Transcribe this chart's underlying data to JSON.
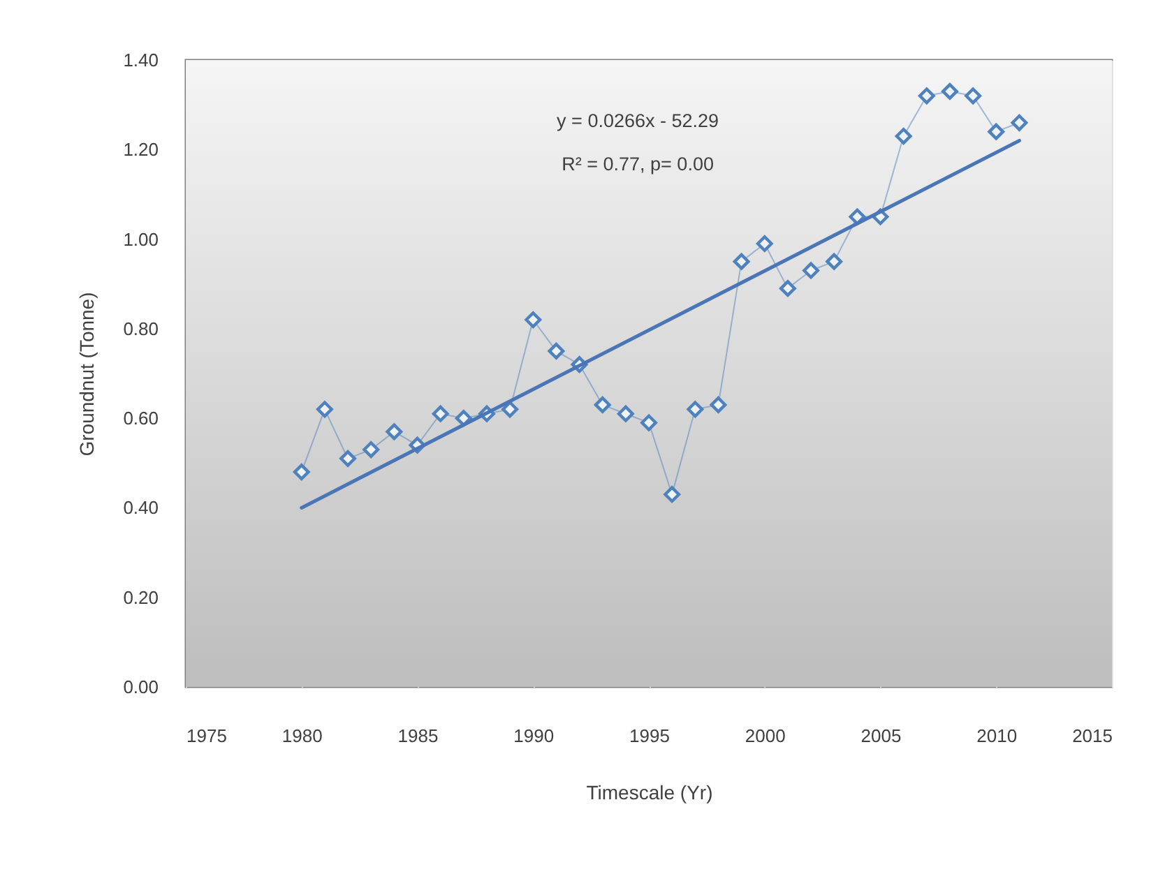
{
  "chart_data": {
    "type": "line",
    "xlabel": "Timescale (Yr)",
    "ylabel": "Groundnut (Tonne)",
    "annotations": [
      "y = 0.0266x - 52.29",
      "R² = 0.77, p= 0.00"
    ],
    "x": [
      1980,
      1981,
      1982,
      1983,
      1984,
      1985,
      1986,
      1987,
      1988,
      1989,
      1990,
      1991,
      1992,
      1993,
      1994,
      1995,
      1996,
      1997,
      1998,
      1999,
      2000,
      2001,
      2002,
      2003,
      2004,
      2005,
      2006,
      2007,
      2008,
      2009,
      2010,
      2011
    ],
    "series": [
      {
        "color": "#4f81bd",
        "values": [
          0.48,
          0.62,
          0.51,
          0.53,
          0.57,
          0.54,
          0.61,
          0.6,
          0.61,
          0.62,
          0.82,
          0.75,
          0.72,
          0.63,
          0.61,
          0.59,
          0.43,
          0.62,
          0.63,
          0.95,
          0.99,
          0.89,
          0.93,
          0.95,
          1.05,
          1.05,
          1.23,
          1.32,
          1.33,
          1.32,
          1.24,
          1.26
        ]
      },
      {
        "type": "line",
        "marker": "none",
        "color": "#4a76b8",
        "x": [
          1980,
          2011
        ],
        "values": [
          0.4,
          1.22
        ]
      }
    ],
    "xlim": [
      1975,
      2015
    ],
    "xticks": [
      1975,
      1980,
      1985,
      1990,
      1995,
      2000,
      2005,
      2010,
      2015
    ],
    "ylim": [
      0,
      1.4
    ],
    "yticks": [
      {
        "value": 0,
        "label": "0.00"
      },
      {
        "value": 0.2,
        "label": "0.20"
      },
      {
        "value": 0.4,
        "label": "0.40"
      },
      {
        "value": 0.6,
        "label": "0.60"
      },
      {
        "value": 0.8,
        "label": "0.80"
      },
      {
        "value": 1.0,
        "label": "1.00"
      },
      {
        "value": 1.2,
        "label": "1.20"
      },
      {
        "value": 1.4,
        "label": "1.40"
      }
    ],
    "grid": "x",
    "marker": "diamond",
    "line_style": "solid"
  }
}
